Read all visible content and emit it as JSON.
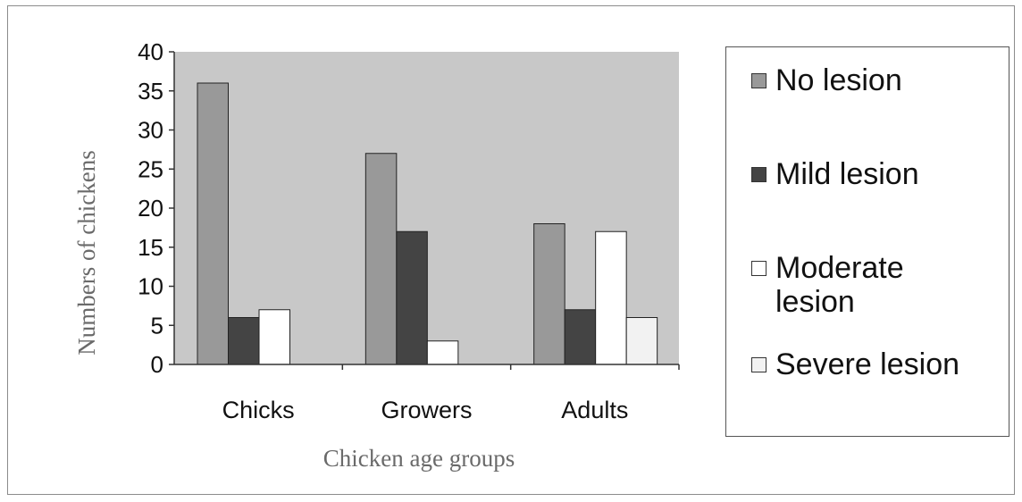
{
  "chart_data": {
    "type": "bar",
    "title": "",
    "xlabel": "Chicken age groups",
    "ylabel": "Numbers of chickens",
    "categories": [
      "Chicks",
      "Growers",
      "Adults"
    ],
    "series": [
      {
        "name": "No lesion",
        "values": [
          36,
          27,
          18
        ],
        "color": "#999999"
      },
      {
        "name": "Mild lesion",
        "values": [
          6,
          17,
          7
        ],
        "color": "#444444"
      },
      {
        "name": "Moderate lesion",
        "values": [
          7,
          3,
          17
        ],
        "color": "#ffffff"
      },
      {
        "name": "Severe lesion",
        "values": [
          null,
          null,
          6
        ],
        "color": "#f2f2f2"
      }
    ],
    "ylim": [
      0,
      40
    ],
    "yticks": [
      0,
      5,
      10,
      15,
      20,
      25,
      30,
      35,
      40
    ],
    "grid": false,
    "plot_background": "#c8c8c8",
    "legend_position": "right"
  },
  "legend": {
    "items": [
      {
        "label": "No lesion",
        "color": "#999999"
      },
      {
        "label": "Mild lesion",
        "color": "#444444"
      },
      {
        "label": "Moderate\nlesion",
        "color": "#ffffff"
      },
      {
        "label": "Severe lesion",
        "color": "#f2f2f2"
      }
    ]
  }
}
